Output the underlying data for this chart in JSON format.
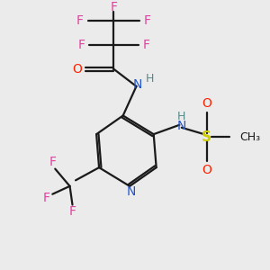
{
  "background_color": "#ebebeb",
  "bond_color": "#1a1a1a",
  "colors": {
    "F": "#e040a0",
    "O": "#ff2200",
    "N": "#2255cc",
    "S": "#cccc00",
    "H": "#558888",
    "C_bond": "#1a1a1a"
  },
  "figsize": [
    3.0,
    3.0
  ],
  "dpi": 100
}
